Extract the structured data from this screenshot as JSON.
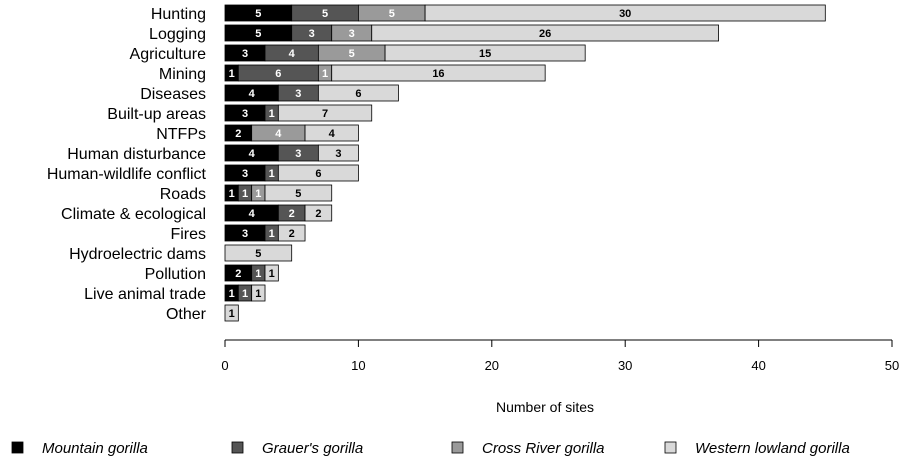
{
  "chart_data": {
    "type": "bar",
    "orientation": "horizontal",
    "stacked": true,
    "categories": [
      "Hunting",
      "Logging",
      "Agriculture",
      "Mining",
      "Diseases",
      "Built-up areas",
      "NTFPs",
      "Human disturbance",
      "Human-wildlife conflict",
      "Roads",
      "Climate & ecological",
      "Fires",
      "Hydroelectric dams",
      "Pollution",
      "Live animal trade",
      "Other"
    ],
    "series": [
      {
        "name": "Mountain gorilla",
        "color": "#000000",
        "label_color": "#ffffff",
        "values": [
          5,
          5,
          3,
          1,
          4,
          3,
          2,
          4,
          3,
          1,
          4,
          3,
          0,
          2,
          1,
          0
        ]
      },
      {
        "name": "Grauer's gorilla",
        "color": "#555555",
        "label_color": "#ffffff",
        "values": [
          5,
          3,
          4,
          6,
          3,
          1,
          0,
          3,
          1,
          1,
          2,
          1,
          0,
          1,
          1,
          0
        ]
      },
      {
        "name": "Cross River gorilla",
        "color": "#9a9a9a",
        "label_color": "#ffffff",
        "values": [
          5,
          3,
          5,
          1,
          0,
          0,
          4,
          0,
          0,
          1,
          0,
          0,
          0,
          0,
          0,
          0
        ]
      },
      {
        "name": "Western lowland gorilla",
        "color": "#d9d9d9",
        "label_color": "#000000",
        "values": [
          30,
          26,
          15,
          16,
          6,
          7,
          4,
          3,
          6,
          5,
          2,
          2,
          5,
          1,
          1,
          1
        ]
      }
    ],
    "xlabel": "Number of sites",
    "ylabel": "",
    "xlim": [
      0,
      50
    ],
    "xticks": [
      0,
      10,
      20,
      30,
      40,
      50
    ],
    "grid": false,
    "legend_position": "bottom"
  }
}
